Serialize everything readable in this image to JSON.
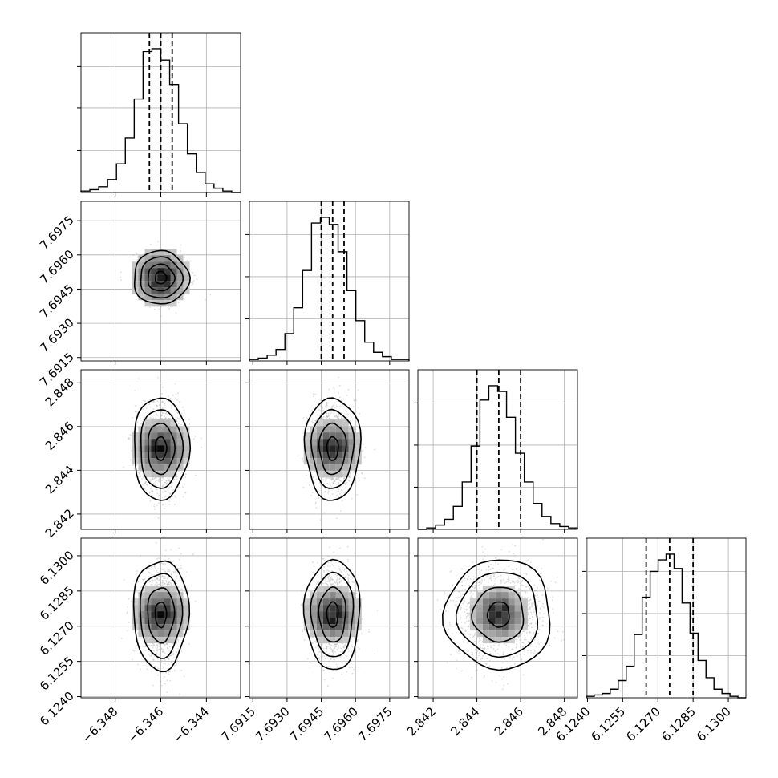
{
  "chart_data": {
    "type": "corner",
    "grid": true,
    "parameters": [
      {
        "range": [
          -6.3495,
          -6.3425
        ],
        "ticks": [
          {
            "value": -6.348,
            "label": "−6.348"
          },
          {
            "value": -6.346,
            "label": "−6.346"
          },
          {
            "value": -6.344,
            "label": "−6.344"
          }
        ],
        "quantiles": [
          -6.3465,
          -6.346,
          -6.3455
        ],
        "hist_counts": [
          1,
          2,
          4,
          9,
          20,
          38,
          65,
          98,
          100,
          92,
          75,
          48,
          27,
          14,
          6,
          3,
          1,
          0
        ]
      },
      {
        "range": [
          7.69135,
          7.69835
        ],
        "ticks": [
          {
            "value": 7.6915,
            "label": "7.6915"
          },
          {
            "value": 7.693,
            "label": "7.6930"
          },
          {
            "value": 7.6945,
            "label": "7.6945"
          },
          {
            "value": 7.696,
            "label": "7.6960"
          },
          {
            "value": 7.6975,
            "label": "7.6975"
          }
        ],
        "quantiles": [
          7.6945,
          7.695,
          7.6955
        ],
        "hist_counts": [
          1,
          2,
          4,
          8,
          19,
          37,
          63,
          96,
          100,
          95,
          76,
          49,
          28,
          13,
          6,
          3,
          1,
          1
        ]
      },
      {
        "range": [
          2.8413,
          2.8486
        ],
        "ticks": [
          {
            "value": 2.842,
            "label": "2.842"
          },
          {
            "value": 2.844,
            "label": "2.844"
          },
          {
            "value": 2.846,
            "label": "2.846"
          },
          {
            "value": 2.848,
            "label": "2.848"
          }
        ],
        "quantiles": [
          2.844,
          2.845,
          2.846
        ],
        "hist_counts": [
          0,
          1,
          3,
          7,
          16,
          33,
          58,
          90,
          100,
          96,
          78,
          53,
          33,
          18,
          9,
          4,
          2,
          1
        ]
      },
      {
        "range": [
          6.12395,
          6.13075
        ],
        "ticks": [
          {
            "value": 6.124,
            "label": "6.1240"
          },
          {
            "value": 6.1255,
            "label": "6.1255"
          },
          {
            "value": 6.127,
            "label": "6.1270"
          },
          {
            "value": 6.1285,
            "label": "6.1285"
          },
          {
            "value": 6.13,
            "label": "6.1300"
          }
        ],
        "quantiles": [
          6.1265,
          6.1275,
          6.1285
        ],
        "hist_counts": [
          1,
          2,
          3,
          6,
          12,
          22,
          44,
          70,
          88,
          96,
          100,
          90,
          66,
          45,
          26,
          14,
          6,
          3,
          1,
          0
        ]
      }
    ],
    "histogram_y_ticks": [
      30,
      60,
      90
    ],
    "scatter_color": "#9e9e9e",
    "contour_color": "#000000"
  }
}
